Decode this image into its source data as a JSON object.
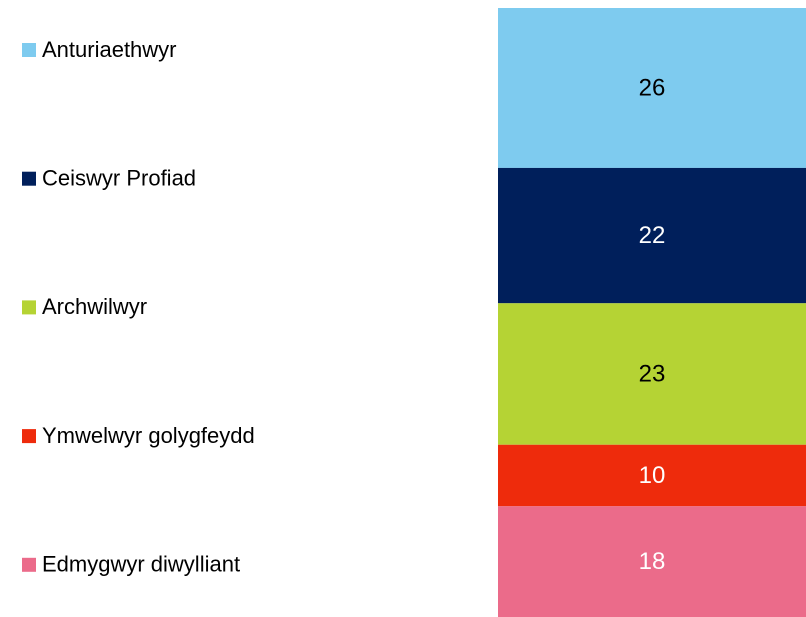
{
  "chart_data": {
    "type": "bar",
    "stacked": true,
    "series": [
      {
        "name": "Anturiaethwyr",
        "color": "#7ecbef",
        "values": [
          26
        ]
      },
      {
        "name": "Ceiswyr Profiad",
        "color": "#001f5b",
        "values": [
          22
        ]
      },
      {
        "name": "Archwilwyr",
        "color": "#b5d334",
        "values": [
          23
        ]
      },
      {
        "name": "Ymwelwyr golygfeydd",
        "color": "#ee2b0c",
        "values": [
          10
        ]
      },
      {
        "name": "Edmygwyr diwylliant",
        "color": "#eb6b8a",
        "values": [
          18
        ]
      }
    ],
    "legend": "left"
  }
}
